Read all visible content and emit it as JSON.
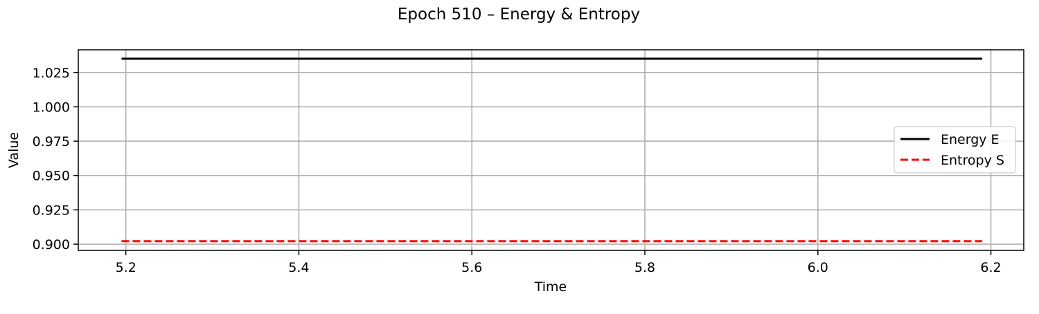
{
  "chart_data": {
    "type": "line",
    "title": "Epoch 510 – Energy & Entropy",
    "xlabel": "Time",
    "ylabel": "Value",
    "xlim": [
      5.145,
      6.238
    ],
    "ylim": [
      0.8955,
      1.0415
    ],
    "xticks": [
      5.2,
      5.4,
      5.6,
      5.8,
      6.0,
      6.2
    ],
    "xtick_labels": [
      "5.2",
      "5.4",
      "5.6",
      "5.8",
      "6.0",
      "6.2"
    ],
    "yticks": [
      0.9,
      0.925,
      0.95,
      0.975,
      1.0,
      1.025
    ],
    "ytick_labels": [
      "0.900",
      "0.925",
      "0.950",
      "0.975",
      "1.000",
      "1.025"
    ],
    "grid": true,
    "legend_position": "center-right",
    "series": [
      {
        "name": "Energy E",
        "color": "#000000",
        "style": "solid",
        "x": [
          5.195,
          6.19
        ],
        "y": [
          1.035,
          1.035
        ]
      },
      {
        "name": "Entropy S",
        "color": "#ff0000",
        "style": "dashed",
        "x": [
          5.195,
          6.19
        ],
        "y": [
          0.9022,
          0.9022
        ]
      }
    ]
  }
}
